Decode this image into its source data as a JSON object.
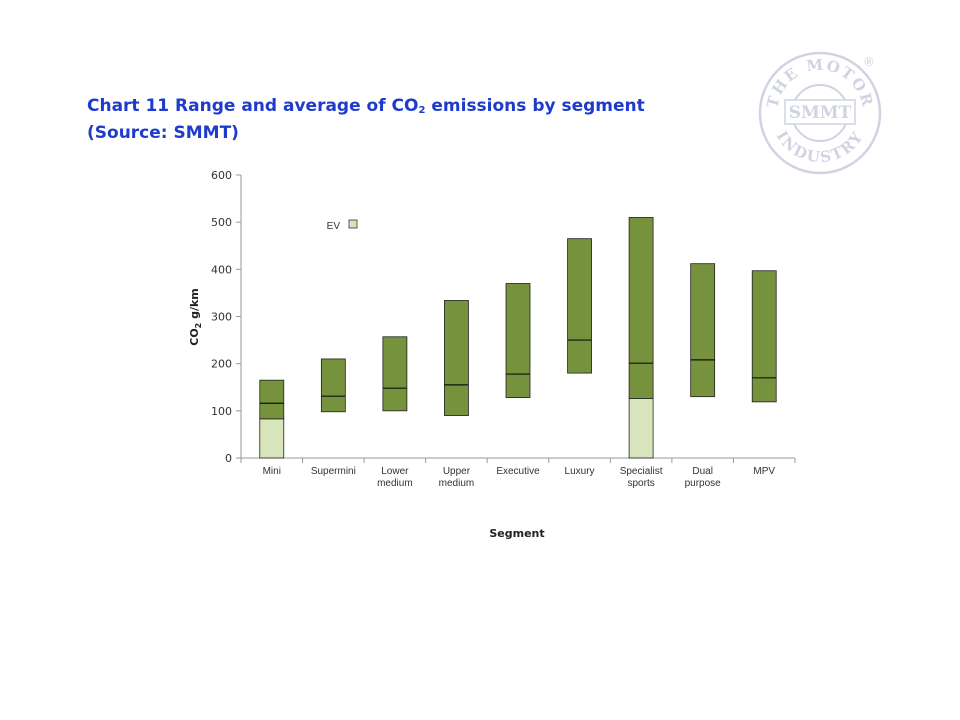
{
  "page": {
    "title_line1_pre": "Chart 11 Range and average of CO",
    "title_sub": "2",
    "title_line1_post": " emissions by segment",
    "title_line2": "(Source: SMMT)"
  },
  "logo": {
    "text_top": "THE MOTOR",
    "text_center": "SMMT",
    "text_bottom": "INDUSTRY",
    "registered": "®",
    "color": "#d0d3e2"
  },
  "chart_data": {
    "type": "bar",
    "categories": [
      [
        "Mini"
      ],
      [
        "Supermini"
      ],
      [
        "Lower",
        "medium"
      ],
      [
        "Upper",
        "medium"
      ],
      [
        "Executive"
      ],
      [
        "Luxury"
      ],
      [
        "Specialist",
        "sports"
      ],
      [
        "Dual",
        "purpose"
      ],
      [
        "MPV"
      ]
    ],
    "series": [
      {
        "type": "range",
        "color": "#76923c",
        "low": [
          83,
          98,
          100,
          90,
          128,
          180,
          126,
          130,
          119
        ],
        "high": [
          165,
          210,
          257,
          334,
          370,
          465,
          510,
          412,
          397
        ],
        "average": [
          116,
          131,
          148,
          155,
          178,
          250,
          201,
          208,
          170
        ]
      },
      {
        "name": "EV",
        "type": "bar",
        "color": "#d8e4bc",
        "values": [
          83,
          null,
          null,
          null,
          null,
          null,
          126,
          null,
          null
        ]
      }
    ],
    "legend": {
      "label": "EV",
      "color": "#d8e4bc",
      "position": "top-left"
    },
    "ylabel_pre": "CO",
    "ylabel_sub": "2",
    "ylabel_post": " g/km",
    "xlabel": "Segment",
    "ylim": [
      0,
      600
    ],
    "yticks": [
      0,
      100,
      200,
      300,
      400,
      500,
      600
    ],
    "grid": false
  }
}
